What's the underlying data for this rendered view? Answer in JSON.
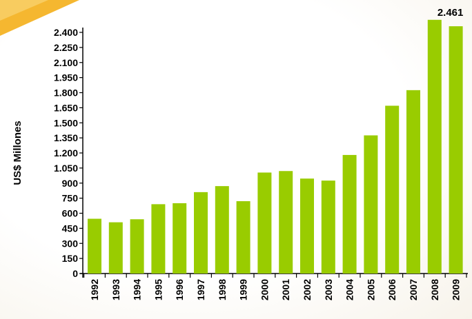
{
  "chart_data": {
    "type": "bar",
    "categories": [
      "1992",
      "1993",
      "1994",
      "1995",
      "1996",
      "1997",
      "1998",
      "1999",
      "2000",
      "2001",
      "2002",
      "2003",
      "2004",
      "2005",
      "2006",
      "2007",
      "2008",
      "2009"
    ],
    "values": [
      545,
      510,
      540,
      690,
      700,
      810,
      870,
      720,
      1005,
      1020,
      945,
      925,
      1180,
      1375,
      1670,
      1825,
      2525,
      2461
    ],
    "ylabel": "US$ Millones",
    "ylim": [
      0,
      2550
    ],
    "yticks": [
      0,
      150,
      300,
      450,
      600,
      750,
      900,
      1050,
      1200,
      1350,
      1500,
      1650,
      1800,
      1950,
      2100,
      2250,
      2400
    ],
    "ytick_labels": [
      "0",
      "150",
      "300",
      "450",
      "600",
      "750",
      "900",
      "1.050",
      "1.200",
      "1.350",
      "1.500",
      "1.650",
      "1.800",
      "1.950",
      "2.100",
      "2.250",
      "2.400"
    ],
    "annotations": [
      {
        "category": "2009",
        "text": "2.461"
      }
    ],
    "bar_color": "#99cc00",
    "grid": false
  }
}
